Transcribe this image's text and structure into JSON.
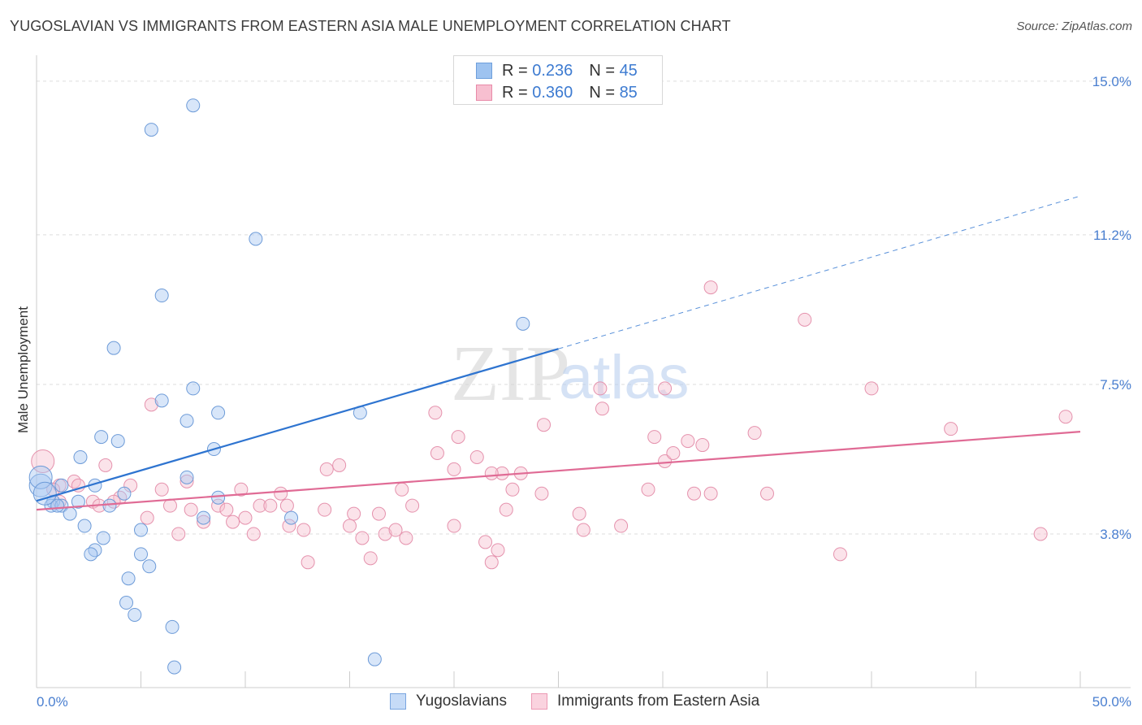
{
  "title": "YUGOSLAVIAN VS IMMIGRANTS FROM EASTERN ASIA MALE UNEMPLOYMENT CORRELATION CHART",
  "source": "Source: ZipAtlas.com",
  "watermark": {
    "zip": "ZIP",
    "atlas": "atlas"
  },
  "legend": {
    "rows": [
      {
        "r_label": "R =",
        "r_value": "0.236",
        "n_label": "N =",
        "n_value": "45",
        "color": "#9ec3f0",
        "border": "#6e9fdc"
      },
      {
        "r_label": "R =",
        "r_value": "0.360",
        "n_label": "N =",
        "n_value": "85",
        "color": "#f7bfd0",
        "border": "#e88aa8"
      }
    ]
  },
  "bottom_legend": [
    {
      "label": "Yugoslavians",
      "color": "#c6dbf7",
      "border": "#7aa6e0"
    },
    {
      "label": "Immigrants from Eastern Asia",
      "color": "#fad3df",
      "border": "#ec9ab4"
    }
  ],
  "chart_data": {
    "type": "scatter",
    "title": "YUGOSLAVIAN VS IMMIGRANTS FROM EASTERN ASIA MALE UNEMPLOYMENT CORRELATION CHART",
    "xlabel": "",
    "ylabel": "Male Unemployment",
    "xlim": [
      0,
      50
    ],
    "ylim": [
      0,
      15.4
    ],
    "x_tick_labels": [
      "0.0%",
      "50.0%"
    ],
    "y_ticks": [
      3.8,
      7.5,
      11.2,
      15.0
    ],
    "y_tick_labels": [
      "3.8%",
      "7.5%",
      "11.2%",
      "15.0%"
    ],
    "grid": true,
    "series": [
      {
        "name": "Yugoslavians",
        "color": "#a8c8f2",
        "edge": "#6d9bd8",
        "trend": {
          "x0": 0,
          "y0": 4.62,
          "x1": 25,
          "y1": 8.38,
          "dash_to_x": 50,
          "dash_to_y": 12.16,
          "color": "#2e74d0"
        },
        "points": [
          [
            7.5,
            14.4
          ],
          [
            5.5,
            13.8
          ],
          [
            10.5,
            11.1
          ],
          [
            6.0,
            9.7
          ],
          [
            23.3,
            9.0
          ],
          [
            3.7,
            8.4
          ],
          [
            7.5,
            7.4
          ],
          [
            6.0,
            7.1
          ],
          [
            8.7,
            6.8
          ],
          [
            7.2,
            6.6
          ],
          [
            15.5,
            6.8
          ],
          [
            3.1,
            6.2
          ],
          [
            3.9,
            6.1
          ],
          [
            8.5,
            5.9
          ],
          [
            2.1,
            5.7
          ],
          [
            7.2,
            5.2
          ],
          [
            0.2,
            5.0
          ],
          [
            1.2,
            5.0
          ],
          [
            2.8,
            5.0
          ],
          [
            0.8,
            4.6
          ],
          [
            0.7,
            4.5
          ],
          [
            1.2,
            4.5
          ],
          [
            2.0,
            4.6
          ],
          [
            1.6,
            4.3
          ],
          [
            3.5,
            4.5
          ],
          [
            4.2,
            4.8
          ],
          [
            8.7,
            4.7
          ],
          [
            8.0,
            4.2
          ],
          [
            12.2,
            4.2
          ],
          [
            2.3,
            4.0
          ],
          [
            5.0,
            3.9
          ],
          [
            3.2,
            3.7
          ],
          [
            2.8,
            3.4
          ],
          [
            2.6,
            3.3
          ],
          [
            5.0,
            3.3
          ],
          [
            5.4,
            3.0
          ],
          [
            4.4,
            2.7
          ],
          [
            4.3,
            2.1
          ],
          [
            4.7,
            1.8
          ],
          [
            6.5,
            1.5
          ],
          [
            16.2,
            0.7
          ],
          [
            6.6,
            0.5
          ],
          [
            0.2,
            5.2
          ],
          [
            1.0,
            4.5
          ],
          [
            0.4,
            4.8
          ]
        ]
      },
      {
        "name": "Immigrants from Eastern Asia",
        "color": "#f6c0d0",
        "edge": "#e592ad",
        "trend": {
          "x0": 0,
          "y0": 4.4,
          "x1": 50,
          "y1": 6.33,
          "color": "#e06b95"
        },
        "points": [
          [
            32.3,
            9.9
          ],
          [
            36.8,
            9.1
          ],
          [
            27.0,
            7.4
          ],
          [
            30.1,
            7.4
          ],
          [
            40.0,
            7.4
          ],
          [
            5.5,
            7.0
          ],
          [
            27.1,
            6.9
          ],
          [
            19.1,
            6.8
          ],
          [
            24.3,
            6.5
          ],
          [
            34.4,
            6.3
          ],
          [
            43.8,
            6.4
          ],
          [
            49.3,
            6.7
          ],
          [
            20.2,
            6.2
          ],
          [
            29.6,
            6.2
          ],
          [
            31.2,
            6.1
          ],
          [
            31.9,
            6.0
          ],
          [
            19.2,
            5.8
          ],
          [
            21.1,
            5.7
          ],
          [
            30.1,
            5.6
          ],
          [
            30.5,
            5.8
          ],
          [
            3.3,
            5.5
          ],
          [
            13.9,
            5.4
          ],
          [
            14.5,
            5.5
          ],
          [
            20.0,
            5.4
          ],
          [
            22.3,
            5.3
          ],
          [
            21.8,
            5.3
          ],
          [
            23.2,
            5.3
          ],
          [
            7.2,
            5.1
          ],
          [
            1.8,
            5.1
          ],
          [
            2.0,
            5.0
          ],
          [
            1.1,
            5.0
          ],
          [
            0.8,
            4.9
          ],
          [
            4.5,
            5.0
          ],
          [
            6.0,
            4.9
          ],
          [
            9.8,
            4.9
          ],
          [
            17.5,
            4.9
          ],
          [
            22.8,
            4.9
          ],
          [
            29.3,
            4.9
          ],
          [
            24.2,
            4.8
          ],
          [
            31.5,
            4.8
          ],
          [
            32.3,
            4.8
          ],
          [
            35.0,
            4.8
          ],
          [
            11.7,
            4.8
          ],
          [
            4.0,
            4.7
          ],
          [
            3.7,
            4.6
          ],
          [
            2.7,
            4.6
          ],
          [
            3.0,
            4.5
          ],
          [
            1.1,
            4.6
          ],
          [
            6.4,
            4.5
          ],
          [
            7.4,
            4.4
          ],
          [
            8.7,
            4.5
          ],
          [
            9.1,
            4.4
          ],
          [
            10.7,
            4.5
          ],
          [
            11.2,
            4.5
          ],
          [
            12.0,
            4.5
          ],
          [
            13.8,
            4.4
          ],
          [
            18.0,
            4.5
          ],
          [
            22.5,
            4.4
          ],
          [
            26.0,
            4.3
          ],
          [
            16.4,
            4.3
          ],
          [
            5.3,
            4.2
          ],
          [
            15.2,
            4.3
          ],
          [
            15.0,
            4.0
          ],
          [
            8.0,
            4.1
          ],
          [
            9.4,
            4.1
          ],
          [
            10.0,
            4.2
          ],
          [
            12.1,
            4.0
          ],
          [
            12.8,
            3.9
          ],
          [
            16.7,
            3.8
          ],
          [
            17.2,
            3.9
          ],
          [
            20.0,
            4.0
          ],
          [
            26.2,
            3.9
          ],
          [
            28.0,
            4.0
          ],
          [
            6.8,
            3.8
          ],
          [
            10.4,
            3.8
          ],
          [
            15.6,
            3.7
          ],
          [
            17.7,
            3.7
          ],
          [
            21.5,
            3.6
          ],
          [
            22.1,
            3.4
          ],
          [
            16.0,
            3.2
          ],
          [
            13.0,
            3.1
          ],
          [
            21.8,
            3.1
          ],
          [
            38.5,
            3.3
          ],
          [
            48.1,
            3.8
          ],
          [
            0.3,
            5.6
          ]
        ]
      }
    ]
  }
}
